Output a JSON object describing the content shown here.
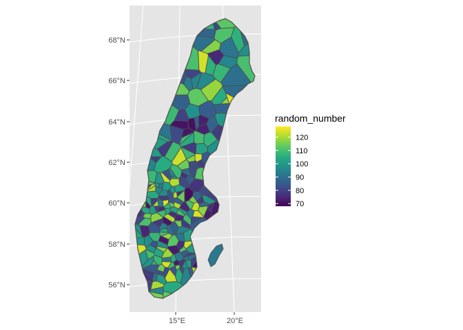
{
  "chart_data": {
    "type": "choropleth",
    "fill_variable": "random_number",
    "legend": {
      "title": "random_number",
      "placement": "right",
      "colormap": "viridis",
      "range": [
        68,
        128
      ],
      "ticks": [
        {
          "value": 120,
          "label": "120"
        },
        {
          "value": 110,
          "label": "110"
        },
        {
          "value": 100,
          "label": "100"
        },
        {
          "value": 90,
          "label": "90"
        },
        {
          "value": 80,
          "label": "80"
        },
        {
          "value": 70,
          "label": "70"
        }
      ]
    },
    "y_axis_ticks": [
      "56°N",
      "58°N",
      "60°N",
      "62°N",
      "64°N",
      "66°N",
      "68°N"
    ],
    "x_axis_ticks": [
      "15°E",
      "20°E"
    ],
    "panel_background": "#e5e5e5",
    "gridlines": true
  }
}
